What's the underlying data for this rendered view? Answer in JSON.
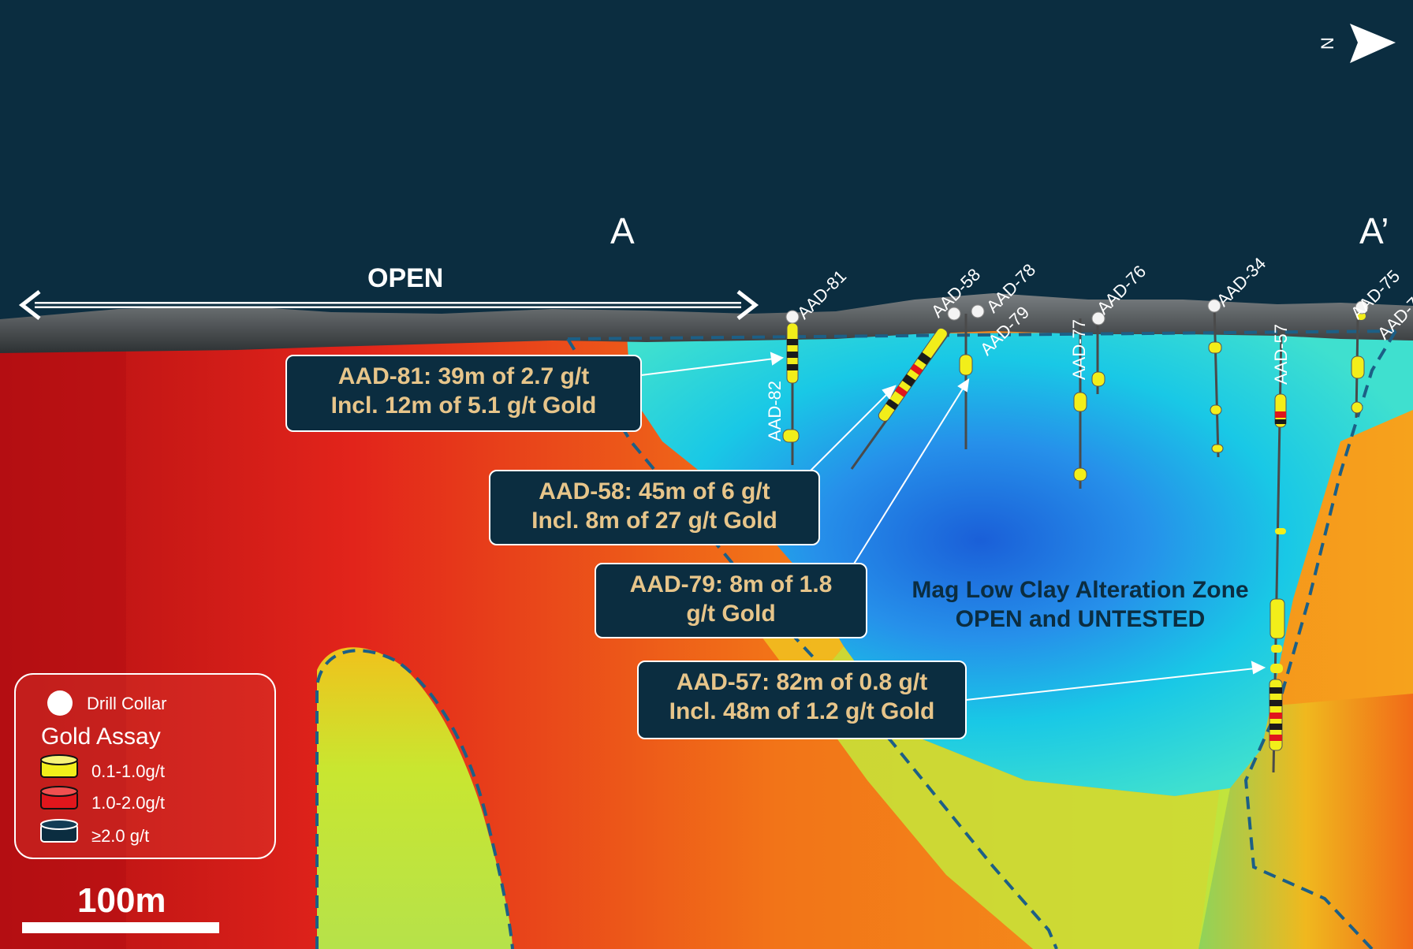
{
  "section_labels": {
    "start": "A",
    "end": "A’"
  },
  "open_label": "OPEN",
  "drill_holes": [
    {
      "name": "AAD-81"
    },
    {
      "name": "AAD-82"
    },
    {
      "name": "AAD-58"
    },
    {
      "name": "AAD-78"
    },
    {
      "name": "AAD-79"
    },
    {
      "name": "AAD-77"
    },
    {
      "name": "AAD-76"
    },
    {
      "name": "AAD-34"
    },
    {
      "name": "AAD-57"
    },
    {
      "name": "AAD-75"
    },
    {
      "name": "AAD-7"
    }
  ],
  "callouts": [
    {
      "line1": "AAD-81: 39m of 2.7 g/t",
      "line2": "Incl. 12m of 5.1 g/t Gold"
    },
    {
      "line1": "AAD-58: 45m of 6 g/t",
      "line2": "Incl. 8m of 27 g/t Gold"
    },
    {
      "line1": "AAD-79: 8m of 1.8",
      "line2": "g/t Gold"
    },
    {
      "line1": "AAD-57: 82m of 0.8 g/t",
      "line2": "Incl. 48m of 1.2 g/t Gold"
    }
  ],
  "zone_label": {
    "line1": "Mag Low Clay Alteration Zone",
    "line2": "OPEN and UNTESTED"
  },
  "legend": {
    "collar_label": "Drill Collar",
    "assay_title": "Gold Assay",
    "items": [
      {
        "label": "0.1-1.0g/t",
        "color": "#f2ee1a"
      },
      {
        "label": "1.0-2.0g/t",
        "color": "#e0161c"
      },
      {
        "label": "≥2.0 g/t",
        "color": "#0b2d40"
      }
    ]
  },
  "scale_bar": {
    "label": "100m"
  },
  "north_arrow": {
    "label": "N"
  },
  "colors": {
    "sky": "#0b2d40",
    "mag_high": "#e0161c",
    "mag_mid": "#f29a1a",
    "mag_low": "#1e6fe0",
    "zone_outline": "#1c5f86"
  }
}
